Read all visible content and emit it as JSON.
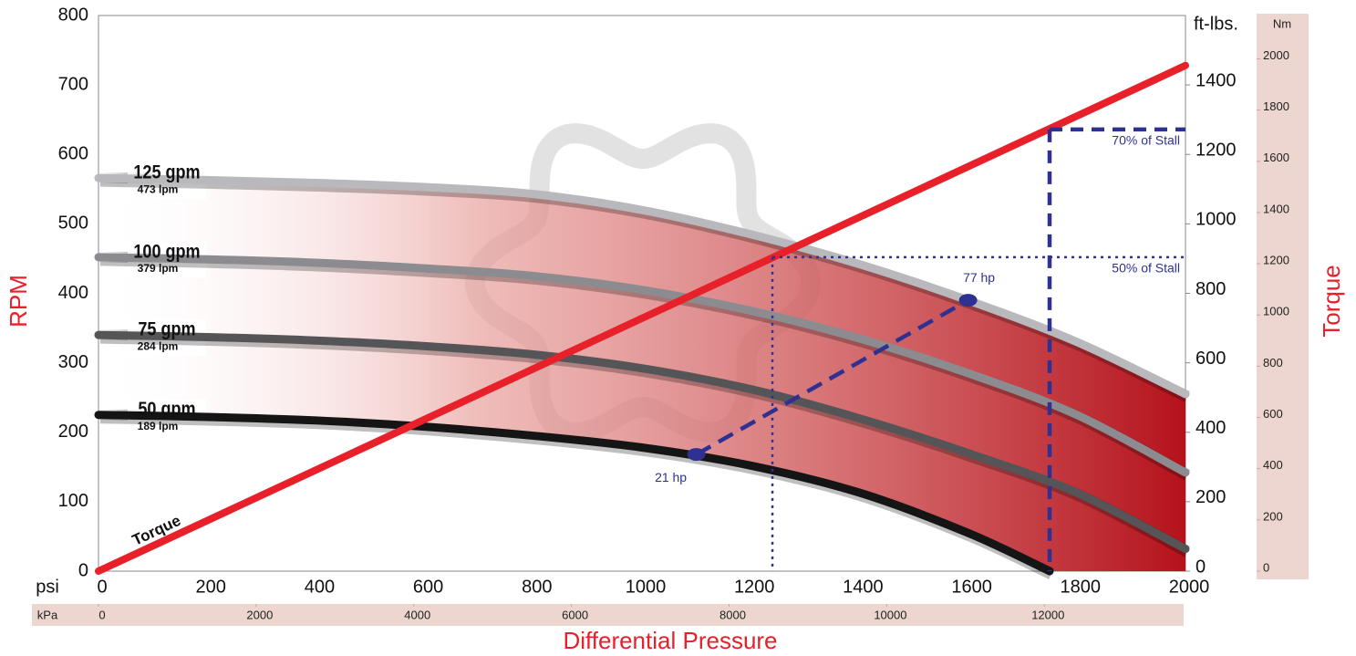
{
  "chart_data": {
    "type": "line",
    "x_label": "Differential Pressure",
    "y_label": "RPM",
    "y2_label": "Torque",
    "x_unit": "psi",
    "x2_unit": "kPa",
    "y2_unit": "ft-lbs.",
    "y3_unit": "Nm",
    "grid": true,
    "xlim": [
      0,
      2000
    ],
    "xticks": [
      0,
      200,
      400,
      600,
      800,
      1000,
      1200,
      1400,
      1600,
      1800,
      2000
    ],
    "x2lim": [
      0,
      13790
    ],
    "x2ticks": [
      0,
      2000,
      4000,
      6000,
      8000,
      10000,
      12000
    ],
    "ylim": [
      0,
      800
    ],
    "yticks": [
      0,
      100,
      200,
      300,
      400,
      500,
      600,
      700,
      800
    ],
    "y2lim": [
      0,
      1600
    ],
    "y2ticks": [
      0,
      200,
      400,
      600,
      800,
      1000,
      1200,
      1400
    ],
    "y3lim": [
      0,
      2169
    ],
    "y3ticks": [
      0,
      200,
      400,
      600,
      800,
      1000,
      1200,
      1400,
      1600,
      1800,
      2000
    ],
    "series": [
      {
        "name": "125 gpm",
        "sublabel": "473 lpm",
        "color": "#b9b9bd",
        "x": [
          0,
          200,
          400,
          600,
          800,
          1000,
          1200,
          1400,
          1600,
          1800,
          2000
        ],
        "values": [
          566,
          563,
          559,
          553,
          543,
          520,
          485,
          442,
          390,
          330,
          255
        ]
      },
      {
        "name": "100 gpm",
        "sublabel": "379 lpm",
        "color": "#8c8c90",
        "x": [
          0,
          200,
          400,
          600,
          800,
          1000,
          1200,
          1400,
          1600,
          1800,
          2000
        ],
        "values": [
          452,
          449,
          444,
          436,
          425,
          405,
          375,
          335,
          285,
          225,
          142
        ]
      },
      {
        "name": "75 gpm",
        "sublabel": "284 lpm",
        "color": "#555558",
        "x": [
          0,
          200,
          400,
          600,
          800,
          1000,
          1200,
          1400,
          1600,
          1800,
          2000
        ],
        "values": [
          340,
          337,
          332,
          324,
          312,
          292,
          262,
          220,
          170,
          113,
          32
        ]
      },
      {
        "name": "50 gpm",
        "sublabel": "189 lpm",
        "color": "#151515",
        "x": [
          0,
          200,
          400,
          600,
          800,
          1000,
          1200,
          1400,
          1600,
          1750
        ],
        "values": [
          225,
          222,
          217,
          208,
          195,
          178,
          152,
          113,
          55,
          0
        ]
      },
      {
        "name": "Torque",
        "color": "#e8202a",
        "axis": "y2",
        "x": [
          0,
          2000
        ],
        "values": [
          0,
          1456
        ]
      }
    ],
    "reference_lines": [
      {
        "label": "70% of Stall",
        "x": 1750,
        "y2": 1272,
        "style": "dashed"
      },
      {
        "label": "50% of Stall",
        "x": 1240,
        "y2": 904,
        "style": "dotted"
      }
    ],
    "power_points": {
      "x": [
        1100,
        1600
      ],
      "values": [
        168,
        390
      ],
      "labels": [
        "21 hp",
        "77 hp"
      ],
      "color": "#2e3192"
    }
  }
}
